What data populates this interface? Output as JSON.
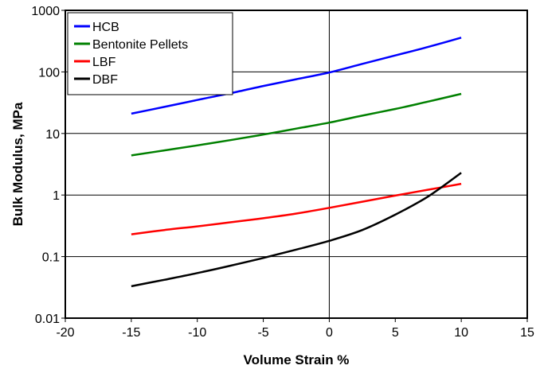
{
  "chart_data": {
    "type": "line",
    "title": "",
    "xlabel": "Volume Strain %",
    "ylabel": "Bulk Modulus, MPa",
    "xlim": [
      -20,
      15
    ],
    "ylim": [
      0.01,
      1000
    ],
    "y_scale": "log",
    "x_ticks": [
      -20,
      -15,
      -10,
      -5,
      0,
      5,
      10,
      15
    ],
    "x_tick_labels": [
      "-20",
      "-15",
      "-10",
      "-5",
      "0",
      "5",
      "10",
      "15"
    ],
    "y_ticks": [
      0.01,
      0.1,
      1,
      10,
      100,
      1000
    ],
    "y_tick_labels": [
      "0.01",
      "0.1",
      "1",
      "10",
      "100",
      "1000"
    ],
    "grid": {
      "horizontal": true,
      "vertical_at_zero": true
    },
    "legend_position": "top-left",
    "x": [
      -15,
      -12.5,
      -10,
      -7.5,
      -5,
      -2.5,
      0,
      2.5,
      5,
      7.5,
      10
    ],
    "series": [
      {
        "name": "HCB",
        "color": "#0000ff",
        "values": [
          21,
          27,
          35,
          45,
          59,
          76,
          98,
          135,
          185,
          255,
          360
        ]
      },
      {
        "name": "Bentonite Pellets",
        "color": "#008000",
        "values": [
          4.4,
          5.3,
          6.4,
          7.8,
          9.6,
          12,
          15,
          19.5,
          25,
          33,
          44
        ]
      },
      {
        "name": "LBF",
        "color": "#ff0000",
        "values": [
          0.23,
          0.27,
          0.31,
          0.36,
          0.42,
          0.5,
          0.62,
          0.78,
          0.98,
          1.22,
          1.52
        ]
      },
      {
        "name": "DBF",
        "color": "#000000",
        "values": [
          0.033,
          0.042,
          0.054,
          0.071,
          0.095,
          0.13,
          0.18,
          0.27,
          0.48,
          0.95,
          2.3
        ]
      }
    ]
  }
}
